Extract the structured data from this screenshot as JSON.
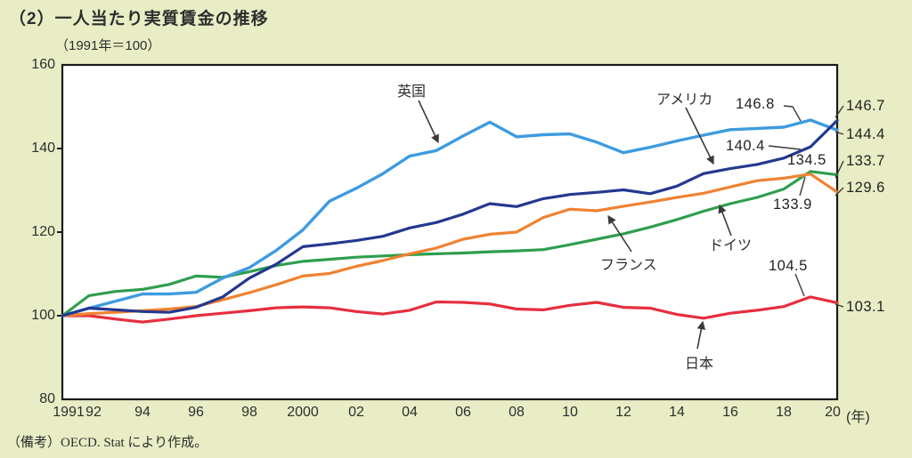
{
  "header": {
    "title": "（2）一人当たり実質賃金の推移",
    "subtitle": "（1991年＝100）"
  },
  "note": "（備考）OECD. Stat により作成。",
  "axis": {
    "y_ticks": [
      "160",
      "140",
      "120",
      "100",
      "80"
    ],
    "x_ticks": [
      "1991",
      "92",
      "94",
      "96",
      "98",
      "2000",
      "02",
      "04",
      "06",
      "08",
      "10",
      "12",
      "14",
      "16",
      "18",
      "20"
    ],
    "x_unit": "(年)"
  },
  "colors": {
    "background": "#e9edc5",
    "plot_background": "#ffffff",
    "plot_border": "#1a1a1a",
    "annotation": "#3a3a3a",
    "uk": "#3d9be0",
    "usa": "#24388f",
    "germany": "#2f9e4e",
    "france": "#f08232",
    "japan": "#e62e3e"
  },
  "chart_data": {
    "type": "line",
    "title": "一人当たり実質賃金の推移",
    "subtitle_index_base": "1991年＝100",
    "xlabel": "年",
    "ylabel": "",
    "ylim": [
      80,
      160
    ],
    "grid": false,
    "x": [
      1991,
      1992,
      1993,
      1994,
      1995,
      1996,
      1997,
      1998,
      1999,
      2000,
      2001,
      2002,
      2003,
      2004,
      2005,
      2006,
      2007,
      2008,
      2009,
      2010,
      2011,
      2012,
      2013,
      2014,
      2015,
      2016,
      2017,
      2018,
      2019,
      2020
    ],
    "series": [
      {
        "name": "英国",
        "color": "#3d9be0",
        "values": [
          100,
          101.8,
          103.5,
          105.2,
          105.2,
          105.6,
          109,
          111.5,
          115.6,
          120.5,
          127.4,
          130.5,
          134,
          138.2,
          139.5,
          143,
          146.3,
          142.8,
          143.3,
          143.5,
          141.5,
          139,
          140.3,
          141.8,
          143.2,
          144.5,
          144.8,
          145.1,
          146.8,
          144.4
        ],
        "peak_label": "146.8",
        "end_label": "144.4"
      },
      {
        "name": "アメリカ",
        "color": "#24388f",
        "values": [
          100,
          101.8,
          101.4,
          101,
          100.8,
          102,
          104.5,
          109,
          112.3,
          116.5,
          117.2,
          118,
          119,
          121,
          122.3,
          124.3,
          126.8,
          126.1,
          128,
          129,
          129.5,
          130.1,
          129.2,
          131,
          134,
          135.2,
          136.2,
          137.7,
          140.4,
          146.7
        ],
        "peak_label": "140.4",
        "end_label": "146.7"
      },
      {
        "name": "ドイツ",
        "color": "#2f9e4e",
        "values": [
          100,
          104.8,
          105.8,
          106.3,
          107.5,
          109.5,
          109.2,
          110.5,
          112,
          113,
          113.5,
          114,
          114.3,
          114.6,
          114.8,
          115,
          115.3,
          115.5,
          115.8,
          117,
          118.3,
          119.6,
          121.2,
          123,
          125,
          126.8,
          128.3,
          130.3,
          134.5,
          133.7
        ],
        "peak_label": "134.5",
        "end_label": "133.7"
      },
      {
        "name": "フランス",
        "color": "#f08232",
        "values": [
          100,
          100.5,
          100.8,
          101.2,
          101.6,
          102.2,
          103.8,
          105.5,
          107.4,
          109.5,
          110.1,
          111.8,
          113.2,
          114.8,
          116.2,
          118.3,
          119.5,
          120,
          123.5,
          125.5,
          125.1,
          126.2,
          127.2,
          128.3,
          129.3,
          130.8,
          132.3,
          132.9,
          133.9,
          129.6
        ],
        "peak_label": "133.9",
        "end_label": "129.6"
      },
      {
        "name": "日本",
        "color": "#e62e3e",
        "values": [
          100,
          100,
          99.2,
          98.5,
          99.2,
          100,
          100.6,
          101.2,
          101.9,
          102.1,
          101.9,
          101,
          100.4,
          101.3,
          103.3,
          103.2,
          102.8,
          101.6,
          101.4,
          102.5,
          103.2,
          102,
          101.8,
          100.3,
          99.4,
          100.6,
          101.3,
          102.2,
          104.5,
          103.1
        ],
        "peak_label": "104.5",
        "end_label": "103.1"
      }
    ]
  }
}
